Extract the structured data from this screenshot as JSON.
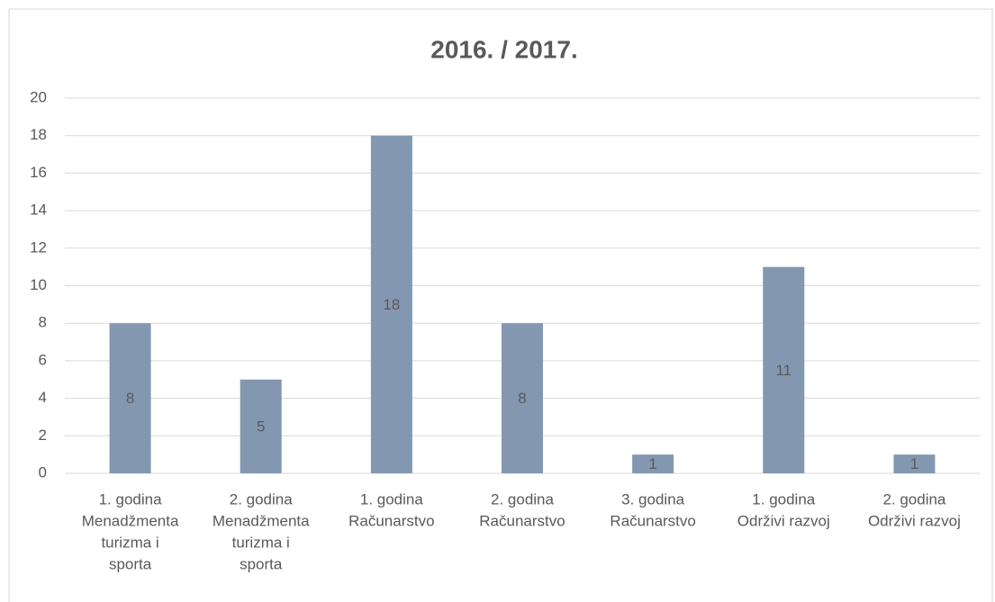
{
  "chart_data": {
    "type": "bar",
    "title": "2016. / 2017.",
    "categories": [
      [
        "1. godina",
        "Menadžmenta",
        "turizma i",
        "sporta"
      ],
      [
        "2. godina",
        "Menadžmenta",
        "turizma i",
        "sporta"
      ],
      [
        "1. godina",
        "Računarstvo"
      ],
      [
        "2. godina",
        "Računarstvo"
      ],
      [
        "3. godina",
        "Računarstvo"
      ],
      [
        "1. godina",
        "Održivi razvoj"
      ],
      [
        "2. godina",
        "Održivi razvoj"
      ]
    ],
    "values": [
      8,
      5,
      18,
      8,
      1,
      11,
      1
    ],
    "color": "#8497b0",
    "ylim": [
      0,
      20
    ],
    "yticks": [
      0,
      2,
      4,
      6,
      8,
      10,
      12,
      14,
      16,
      18,
      20
    ],
    "grid": true
  }
}
